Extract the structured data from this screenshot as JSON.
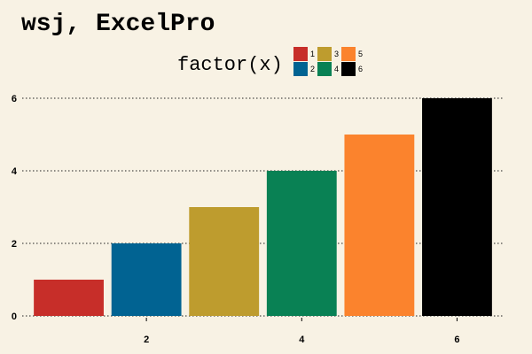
{
  "chart_data": {
    "type": "bar",
    "title": "wsj, ExcelPro",
    "xlabel": "",
    "ylabel": "",
    "x": [
      1,
      2,
      3,
      4,
      5,
      6
    ],
    "values": [
      1,
      2,
      3,
      4,
      5,
      6
    ],
    "categories": [
      "1",
      "2",
      "3",
      "4",
      "5",
      "6"
    ],
    "colors": [
      "#c72e29",
      "#016392",
      "#be9c2e",
      "#098154",
      "#fb832d",
      "#000000"
    ],
    "xlim": [
      0.4,
      6.6
    ],
    "ylim": [
      0,
      6
    ],
    "xticks": [
      2,
      4,
      6
    ],
    "yticks": [
      0,
      2,
      4,
      6
    ],
    "grid": "horizontal-dotted",
    "legend": {
      "title": "factor(x)",
      "placement": "top-center",
      "entries": [
        "1",
        "2",
        "3",
        "4",
        "5",
        "6"
      ]
    },
    "background": "#f8f2e4"
  }
}
